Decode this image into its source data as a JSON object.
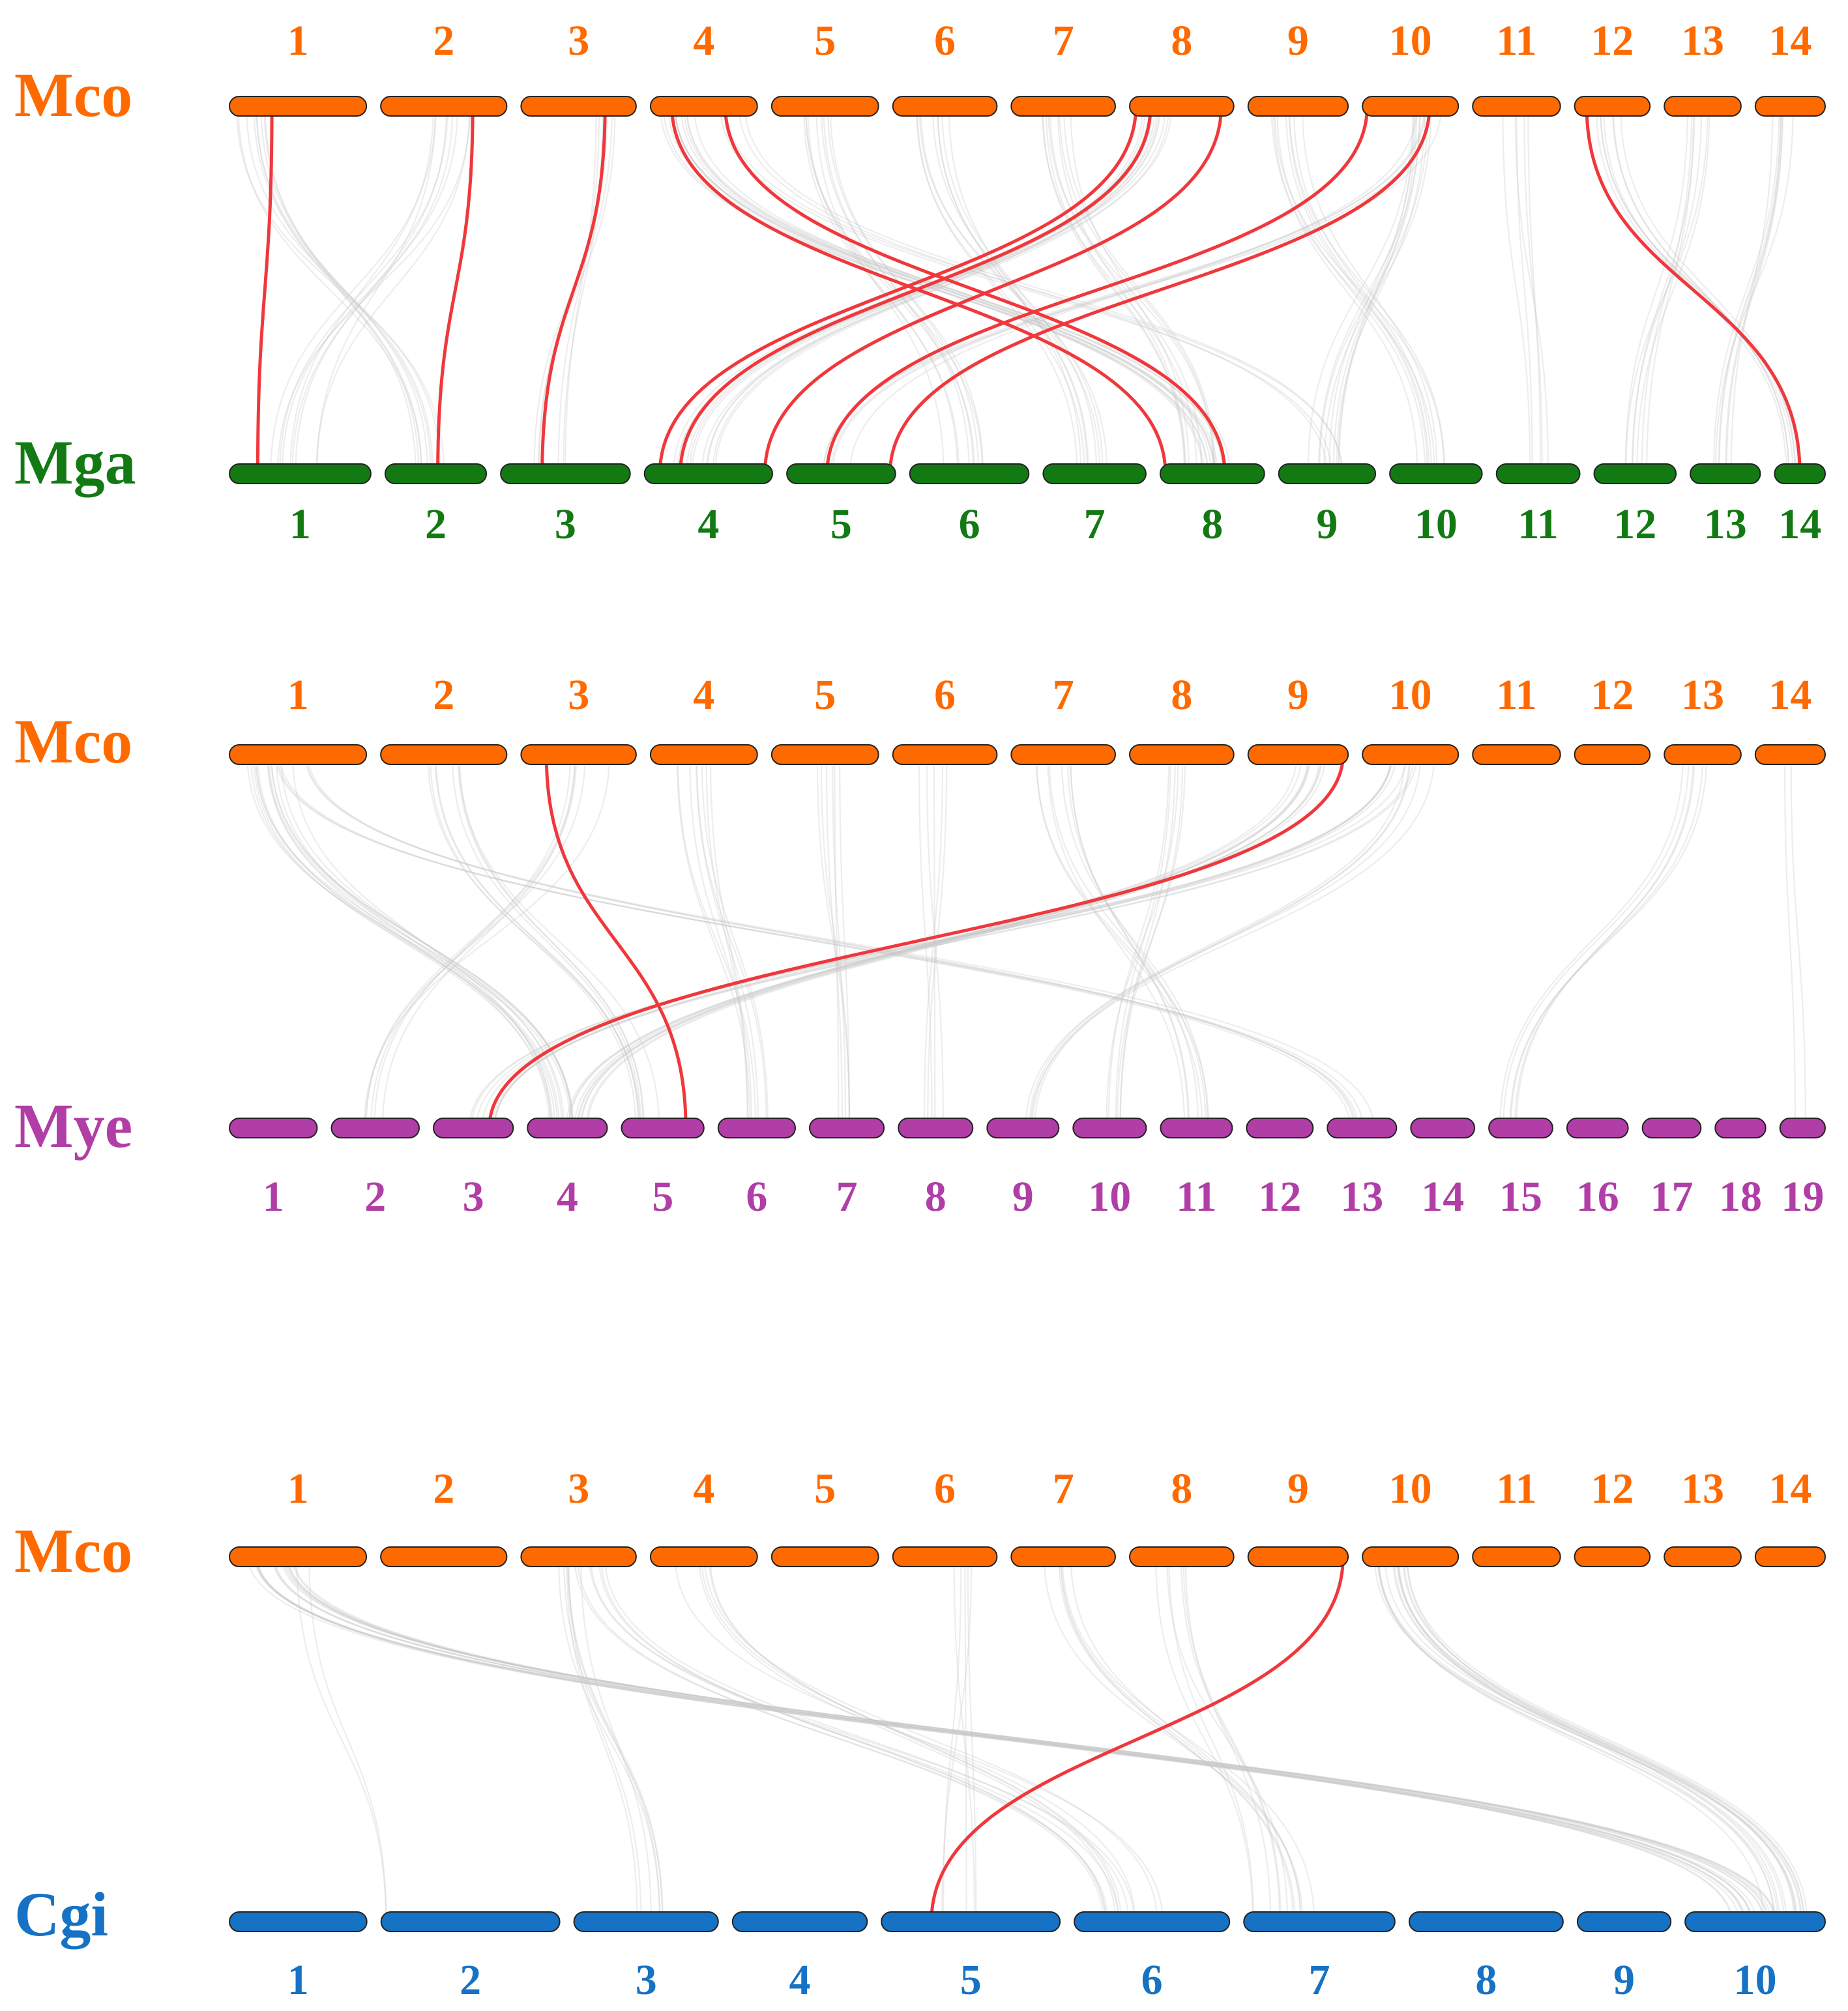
{
  "colors": {
    "Mco": "#ff6a00",
    "Mga": "#137a13",
    "Mye": "#b03ea6",
    "Cgi": "#1672c4",
    "highlight_link": "#f0383c",
    "background_link": "#c8c8c8"
  },
  "panels": [
    {
      "top": {
        "species": "Mco",
        "chromosomes": [
          "1",
          "2",
          "3",
          "4",
          "5",
          "6",
          "7",
          "8",
          "9",
          "10",
          "11",
          "12",
          "13",
          "14"
        ],
        "lengths": [
          100,
          92,
          84,
          78,
          78,
          76,
          76,
          76,
          73,
          70,
          64,
          55,
          56,
          51
        ]
      },
      "bottom": {
        "species": "Mga",
        "chromosomes": [
          "1",
          "2",
          "3",
          "4",
          "5",
          "6",
          "7",
          "8",
          "9",
          "10",
          "11",
          "12",
          "13",
          "14"
        ],
        "lengths": [
          95,
          68,
          87,
          86,
          73,
          80,
          69,
          70,
          65,
          62,
          56,
          55,
          47,
          34
        ]
      },
      "background_links": [
        {
          "from": [
            1,
            0.2
          ],
          "to": [
            2,
            0.45
          ],
          "count": 9
        },
        {
          "from": [
            2,
            0.55
          ],
          "to": [
            1,
            0.45
          ],
          "count": 9
        },
        {
          "from": [
            3,
            0.8
          ],
          "to": [
            3,
            0.35
          ],
          "count": 6
        },
        {
          "from": [
            4,
            0.25
          ],
          "to": [
            8,
            0.55
          ],
          "count": 12
        },
        {
          "from": [
            5,
            0.4
          ],
          "to": [
            6,
            0.45
          ],
          "count": 9
        },
        {
          "from": [
            6,
            0.4
          ],
          "to": [
            7,
            0.45
          ],
          "count": 9
        },
        {
          "from": [
            7,
            0.45
          ],
          "to": [
            8,
            0.4
          ],
          "count": 9
        },
        {
          "from": [
            8,
            0.3
          ],
          "to": [
            4,
            0.4
          ],
          "count": 12
        },
        {
          "from": [
            9,
            0.4
          ],
          "to": [
            10,
            0.45
          ],
          "count": 9
        },
        {
          "from": [
            10,
            0.55
          ],
          "to": [
            9,
            0.45
          ],
          "count": 9
        },
        {
          "from": [
            11,
            0.5
          ],
          "to": [
            11,
            0.45
          ],
          "count": 5
        },
        {
          "from": [
            12,
            0.45
          ],
          "to": [
            14,
            0.4
          ],
          "count": 7
        },
        {
          "from": [
            13,
            0.45
          ],
          "to": [
            12,
            0.5
          ],
          "count": 7
        },
        {
          "from": [
            14,
            0.4
          ],
          "to": [
            13,
            0.5
          ],
          "count": 7
        },
        {
          "from": [
            10,
            0.7
          ],
          "to": [
            5,
            0.5
          ],
          "count": 5
        },
        {
          "from": [
            4,
            0.75
          ],
          "to": [
            9,
            0.5
          ],
          "count": 4
        }
      ],
      "highlight_links": [
        {
          "from": [
            1,
            0.31
          ],
          "to": [
            1,
            0.2
          ]
        },
        {
          "from": [
            2,
            0.73
          ],
          "to": [
            2,
            0.52
          ]
        },
        {
          "from": [
            3,
            0.73
          ],
          "to": [
            3,
            0.32
          ]
        },
        {
          "from": [
            4,
            0.2
          ],
          "to": [
            8,
            0.05
          ]
        },
        {
          "from": [
            4,
            0.7
          ],
          "to": [
            8,
            0.62
          ]
        },
        {
          "from": [
            8,
            0.06
          ],
          "to": [
            4,
            0.12
          ]
        },
        {
          "from": [
            8,
            0.2
          ],
          "to": [
            4,
            0.28
          ]
        },
        {
          "from": [
            8,
            0.88
          ],
          "to": [
            4,
            0.94
          ]
        },
        {
          "from": [
            10,
            0.05
          ],
          "to": [
            5,
            0.37
          ]
        },
        {
          "from": [
            10,
            0.7
          ],
          "to": [
            5,
            0.95
          ]
        },
        {
          "from": [
            12,
            0.16
          ],
          "to": [
            14,
            0.5
          ]
        }
      ]
    },
    {
      "top": {
        "species": "Mco",
        "chromosomes": [
          "1",
          "2",
          "3",
          "4",
          "5",
          "6",
          "7",
          "8",
          "9",
          "10",
          "11",
          "12",
          "13",
          "14"
        ],
        "lengths": [
          100,
          92,
          84,
          78,
          78,
          76,
          76,
          76,
          73,
          70,
          64,
          55,
          56,
          51
        ]
      },
      "bottom": {
        "species": "Mye",
        "chromosomes": [
          "1",
          "2",
          "3",
          "4",
          "5",
          "6",
          "7",
          "8",
          "9",
          "10",
          "11",
          "12",
          "13",
          "14",
          "15",
          "16",
          "17",
          "18",
          "19"
        ],
        "lengths": [
          66,
          66,
          60,
          60,
          62,
          58,
          56,
          56,
          54,
          55,
          54,
          50,
          52,
          48,
          48,
          46,
          44,
          38,
          34
        ]
      },
      "background_links": [
        {
          "from": [
            1,
            0.3
          ],
          "to": [
            4,
            0.4
          ],
          "count": 14
        },
        {
          "from": [
            2,
            0.5
          ],
          "to": [
            5,
            0.3
          ],
          "count": 8
        },
        {
          "from": [
            3,
            0.6
          ],
          "to": [
            2,
            0.5
          ],
          "count": 6
        },
        {
          "from": [
            4,
            0.4
          ],
          "to": [
            6,
            0.5
          ],
          "count": 8
        },
        {
          "from": [
            5,
            0.5
          ],
          "to": [
            7,
            0.5
          ],
          "count": 6
        },
        {
          "from": [
            6,
            0.4
          ],
          "to": [
            8,
            0.5
          ],
          "count": 5
        },
        {
          "from": [
            7,
            0.4
          ],
          "to": [
            11,
            0.5
          ],
          "count": 8
        },
        {
          "from": [
            8,
            0.4
          ],
          "to": [
            10,
            0.5
          ],
          "count": 6
        },
        {
          "from": [
            9,
            0.6
          ],
          "to": [
            4,
            0.6
          ],
          "count": 10
        },
        {
          "from": [
            10,
            0.4
          ],
          "to": [
            3,
            0.6
          ],
          "count": 8
        },
        {
          "from": [
            10,
            0.6
          ],
          "to": [
            9,
            0.5
          ],
          "count": 5
        },
        {
          "from": [
            13,
            0.4
          ],
          "to": [
            15,
            0.3
          ],
          "count": 6
        },
        {
          "from": [
            1,
            0.5
          ],
          "to": [
            13,
            0.5
          ],
          "count": 6
        },
        {
          "from": [
            14,
            0.5
          ],
          "to": [
            19,
            0.5
          ],
          "count": 2
        }
      ],
      "highlight_links": [
        {
          "from": [
            3,
            0.22
          ],
          "to": [
            5,
            0.78
          ]
        },
        {
          "from": [
            9,
            0.95
          ],
          "to": [
            3,
            0.7
          ]
        }
      ]
    },
    {
      "top": {
        "species": "Mco",
        "chromosomes": [
          "1",
          "2",
          "3",
          "4",
          "5",
          "6",
          "7",
          "8",
          "9",
          "10",
          "11",
          "12",
          "13",
          "14"
        ],
        "lengths": [
          100,
          92,
          84,
          78,
          78,
          76,
          76,
          76,
          73,
          70,
          64,
          55,
          56,
          51
        ]
      },
      "bottom": {
        "species": "Cgi",
        "chromosomes": [
          "1",
          "2",
          "3",
          "4",
          "5",
          "6",
          "7",
          "8",
          "9",
          "10"
        ],
        "lengths": [
          100,
          130,
          105,
          98,
          130,
          113,
          110,
          112,
          68,
          102
        ]
      },
      "background_links": [
        {
          "from": [
            1,
            0.3
          ],
          "to": [
            10,
            0.5
          ],
          "count": 18
        },
        {
          "from": [
            3,
            0.4
          ],
          "to": [
            3,
            0.6
          ],
          "count": 7
        },
        {
          "from": [
            3,
            0.6
          ],
          "to": [
            6,
            0.3
          ],
          "count": 7
        },
        {
          "from": [
            4,
            0.4
          ],
          "to": [
            6,
            0.4
          ],
          "count": 6
        },
        {
          "from": [
            6,
            0.6
          ],
          "to": [
            5,
            0.4
          ],
          "count": 5
        },
        {
          "from": [
            7,
            0.4
          ],
          "to": [
            7,
            0.5
          ],
          "count": 6
        },
        {
          "from": [
            8,
            0.4
          ],
          "to": [
            7,
            0.2
          ],
          "count": 6
        },
        {
          "from": [
            10,
            0.3
          ],
          "to": [
            10,
            0.7
          ],
          "count": 16
        },
        {
          "from": [
            1,
            0.5
          ],
          "to": [
            2,
            0.2
          ],
          "count": 2
        }
      ],
      "highlight_links": [
        {
          "from": [
            9,
            0.95
          ],
          "to": [
            5,
            0.28
          ]
        }
      ]
    }
  ]
}
